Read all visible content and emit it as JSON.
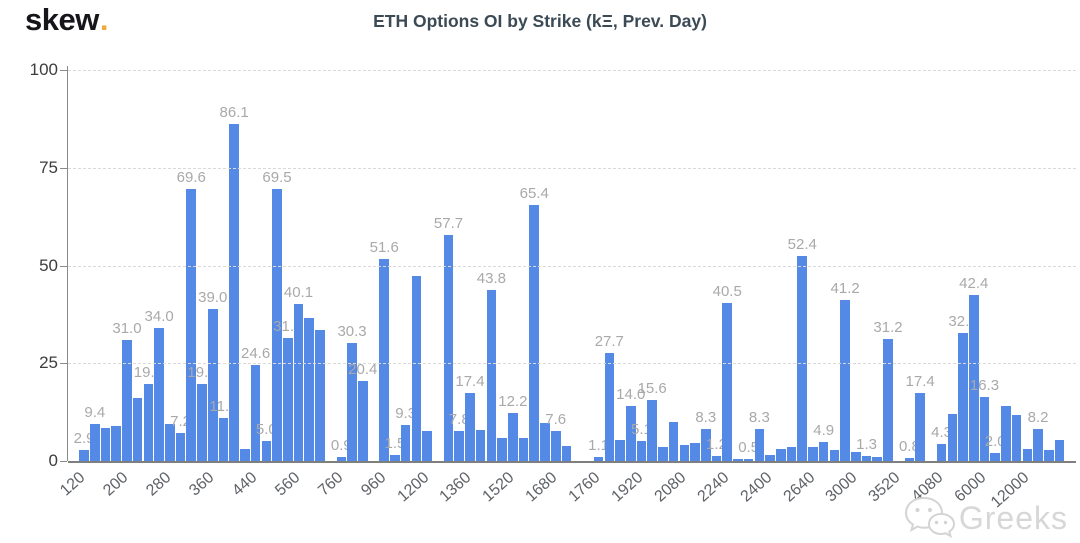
{
  "header": {
    "logo": "skew",
    "logo_dot": ".",
    "title": "ETH Options OI by Strike (kΞ, Prev. Day)"
  },
  "watermark": {
    "icon": "wechat-icon",
    "text": "Greeks"
  },
  "colors": {
    "bar": "#5589e6",
    "value_label": "#a9a9a9",
    "grid": "#d9d9d9",
    "axis": "#7f7f7f",
    "y_tick_label": "#3d3d3d",
    "x_tick_label": "#5f6368",
    "title": "#3b4a54",
    "logo": "#15151a",
    "logo_dot": "#f0a93a",
    "watermark": "#d7d7d7"
  },
  "chart_data": {
    "type": "bar",
    "title": "ETH Options OI by Strike (kΞ, Prev. Day)",
    "ylabel": "",
    "xlabel": "",
    "ylim": [
      0,
      100
    ],
    "y_ticks": [
      "100",
      "75",
      "50",
      "25",
      "0"
    ],
    "grid": "horizontal-dashed",
    "legend": "none",
    "x_tick_labels": [
      "120",
      "200",
      "280",
      "360",
      "440",
      "560",
      "760",
      "960",
      "1200",
      "1360",
      "1520",
      "1680",
      "1760",
      "1920",
      "2080",
      "2240",
      "2400",
      "2640",
      "3000",
      "3520",
      "4080",
      "6000",
      "12000"
    ],
    "bars": [
      {
        "v": 0,
        "t": "120"
      },
      {
        "v": 2.9,
        "l": "2.9"
      },
      {
        "v": 9.4,
        "l": "9.4"
      },
      {
        "v": 8.5
      },
      {
        "v": 9.0,
        "t": "200"
      },
      {
        "v": 31.0,
        "l": "31.0"
      },
      {
        "v": 16.0
      },
      {
        "v": 19.6,
        "l": "19.6"
      },
      {
        "v": 34.0,
        "l": "34.0",
        "t": "280"
      },
      {
        "v": 9.5
      },
      {
        "v": 7.2,
        "l": "7.2"
      },
      {
        "v": 69.6,
        "l": "69.6"
      },
      {
        "v": 19.8,
        "l": "19.8",
        "t": "360"
      },
      {
        "v": 39.0,
        "l": "39.0"
      },
      {
        "v": 11.0,
        "l": "11.0"
      },
      {
        "v": 86.1,
        "l": "86.1"
      },
      {
        "v": 3.0,
        "t": "440"
      },
      {
        "v": 24.6,
        "l": "24.6"
      },
      {
        "v": 5.0,
        "l": "5.0"
      },
      {
        "v": 69.5,
        "l": "69.5"
      },
      {
        "v": 31.5,
        "l": "31.5",
        "t": "560"
      },
      {
        "v": 40.1,
        "l": "40.1"
      },
      {
        "v": 36.5
      },
      {
        "v": 33.5
      },
      {
        "v": 0,
        "t": "760"
      },
      {
        "v": 0.9,
        "l": "0.9"
      },
      {
        "v": 30.3,
        "l": "30.3"
      },
      {
        "v": 20.4,
        "l": "20.4"
      },
      {
        "v": 0,
        "t": "960"
      },
      {
        "v": 51.6,
        "l": "51.6"
      },
      {
        "v": 1.5,
        "l": "1.5"
      },
      {
        "v": 9.3,
        "l": "9.3"
      },
      {
        "v": 47.3,
        "t": "1200"
      },
      {
        "v": 7.8
      },
      {
        "v": 0
      },
      {
        "v": 57.7,
        "l": "57.7"
      },
      {
        "v": 7.8,
        "l": "7.8",
        "t": "1360"
      },
      {
        "v": 17.4,
        "l": "17.4"
      },
      {
        "v": 8.0
      },
      {
        "v": 43.8,
        "l": "43.8"
      },
      {
        "v": 6.0,
        "t": "1520"
      },
      {
        "v": 12.2,
        "l": "12.2"
      },
      {
        "v": 6.0
      },
      {
        "v": 65.4,
        "l": "65.4"
      },
      {
        "v": 9.7,
        "t": "1680"
      },
      {
        "v": 7.6,
        "l": "7.6"
      },
      {
        "v": 3.9
      },
      {
        "v": 0
      },
      {
        "v": 0,
        "t": "1760"
      },
      {
        "v": 1.1,
        "l": "1.1"
      },
      {
        "v": 27.7,
        "l": "27.7"
      },
      {
        "v": 5.4
      },
      {
        "v": 14.0,
        "l": "14.0",
        "t": "1920"
      },
      {
        "v": 5.1,
        "l": "5.1"
      },
      {
        "v": 15.6,
        "l": "15.6"
      },
      {
        "v": 3.7
      },
      {
        "v": 10.0,
        "t": "2080"
      },
      {
        "v": 4.1
      },
      {
        "v": 4.5
      },
      {
        "v": 8.3,
        "l": "8.3"
      },
      {
        "v": 1.2,
        "l": "1.2",
        "t": "2240"
      },
      {
        "v": 40.5,
        "l": "40.5"
      },
      {
        "v": 0.4
      },
      {
        "v": 0.5,
        "l": "0.5"
      },
      {
        "v": 8.3,
        "l": "8.3",
        "t": "2400"
      },
      {
        "v": 1.5
      },
      {
        "v": 3.1
      },
      {
        "v": 3.7
      },
      {
        "v": 52.4,
        "l": "52.4",
        "t": "2640"
      },
      {
        "v": 3.7
      },
      {
        "v": 4.9,
        "l": "4.9"
      },
      {
        "v": 2.8
      },
      {
        "v": 41.2,
        "l": "41.2",
        "t": "3000"
      },
      {
        "v": 2.4
      },
      {
        "v": 1.3,
        "l": "1.3"
      },
      {
        "v": 1.0
      },
      {
        "v": 31.2,
        "l": "31.2",
        "t": "3520"
      },
      {
        "v": 0
      },
      {
        "v": 0.8,
        "l": "0.8"
      },
      {
        "v": 17.4,
        "l": "17.4"
      },
      {
        "v": 0,
        "t": "4080"
      },
      {
        "v": 4.3,
        "l": "4.3"
      },
      {
        "v": 12.0
      },
      {
        "v": 32.7,
        "l": "32.7"
      },
      {
        "v": 42.4,
        "l": "42.4",
        "t": "6000"
      },
      {
        "v": 16.3,
        "l": "16.3"
      },
      {
        "v": 2.0,
        "l": "2.0"
      },
      {
        "v": 14.0
      },
      {
        "v": 11.8,
        "t": "12000"
      },
      {
        "v": 3.2
      },
      {
        "v": 8.2,
        "l": "8.2"
      },
      {
        "v": 2.8
      },
      {
        "v": 5.4
      },
      {
        "v": 0
      }
    ]
  }
}
